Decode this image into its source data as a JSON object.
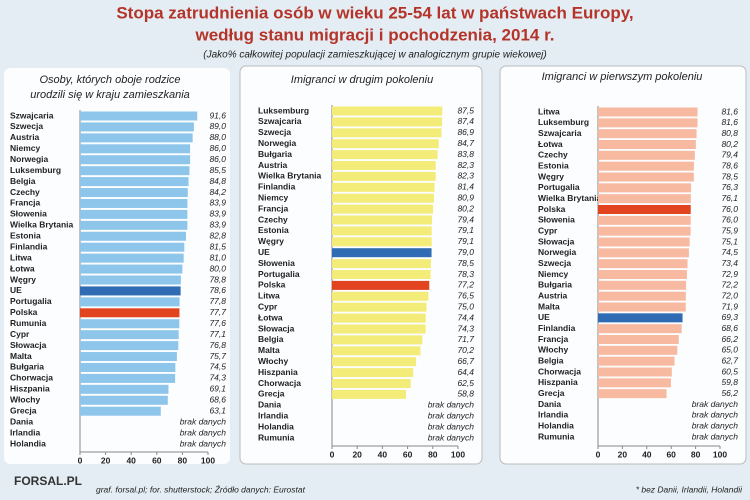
{
  "title": [
    "Stopa zatrudnienia osób w wieku 25-54 lat w państwach Europy,",
    "według stanu migracji i pochodzenia, 2014 r."
  ],
  "subtitle": "(Jako% całkowitej populacji zamieszkującej w analogicznym grupie wiekowej)",
  "logo": "FORSAL.PL",
  "source": "graf. forsal.pl; for. shutterstock; Źródło danych: Eurostat",
  "note": "* bez Danii, Irlandii, Holandii",
  "chart_data": [
    {
      "type": "bar",
      "orientation": "horizontal",
      "title": [
        "Osoby, których oboje rodzice",
        "urodzili się w kraju zamieszkania"
      ],
      "color": "#8dc6ea",
      "highlight_colors": {
        "UE": "#2f6cb3",
        "Polska": "#e2441f"
      },
      "xlim": [
        0,
        100
      ],
      "xticks": [
        0,
        20,
        40,
        60,
        80,
        100
      ],
      "categories": [
        "Szwajcaria",
        "Szwecja",
        "Austria",
        "Niemcy",
        "Norwegia",
        "Luksemburg",
        "Belgia",
        "Czechy",
        "Francja",
        "Słowenia",
        "Wielka Brytania",
        "Estonia",
        "Finlandia",
        "Litwa",
        "Łotwa",
        "Węgry",
        "UE",
        "Portugalia",
        "Polska",
        "Rumunia",
        "Cypr",
        "Słowacja",
        "Malta",
        "Bułgaria",
        "Chorwacja",
        "Hiszpania",
        "Włochy",
        "Grecja",
        "Dania",
        "Irlandia",
        "Holandia"
      ],
      "values": [
        91.6,
        89.0,
        88.0,
        86.0,
        86.0,
        85.5,
        84.8,
        84.2,
        83.9,
        83.9,
        83.9,
        82.8,
        81.5,
        81.0,
        80.0,
        78.8,
        78.6,
        77.8,
        77.7,
        77.6,
        77.1,
        76.8,
        75.7,
        74.5,
        74.3,
        69.1,
        68.6,
        63.1,
        null,
        null,
        null
      ],
      "value_labels": [
        "91,6",
        "89,0",
        "88,0",
        "86,0",
        "86,0",
        "85,5",
        "84,8",
        "84,2",
        "83,9",
        "83,9",
        "83,9",
        "82,8",
        "81,5",
        "81,0",
        "80,0",
        "78,8",
        "78,6",
        "77,8",
        "77,7",
        "77,6",
        "77,1",
        "76,8",
        "75,7",
        "74,5",
        "74,3",
        "69,1",
        "68,6",
        "63,1",
        "brak danych",
        "brak danych",
        "brak danych"
      ]
    },
    {
      "type": "bar",
      "orientation": "horizontal",
      "title": [
        "Imigranci w drugim pokoleniu"
      ],
      "color": "#f3ec78",
      "highlight_colors": {
        "UE": "#2f6cb3",
        "Polska": "#e2441f"
      },
      "xlim": [
        0,
        100
      ],
      "xticks": [
        0,
        20,
        40,
        60,
        80,
        100
      ],
      "categories": [
        "Luksemburg",
        "Szwajcaria",
        "Szwecja",
        "Norwegia",
        "Bułgaria",
        "Austria",
        "Wielka Brytania",
        "Finlandia",
        "Niemcy",
        "Francja",
        "Czechy",
        "Estonia",
        "Węgry",
        "UE",
        "Słowenia",
        "Portugalia",
        "Polska",
        "Litwa",
        "Cypr",
        "Łotwa",
        "Słowacja",
        "Belgia",
        "Malta",
        "Włochy",
        "Hiszpania",
        "Chorwacja",
        "Grecja",
        "Dania",
        "Irlandia",
        "Holandia",
        "Rumunia"
      ],
      "values": [
        87.5,
        87.4,
        86.9,
        84.7,
        83.8,
        82.3,
        82.3,
        81.4,
        80.9,
        80.2,
        79.4,
        79.1,
        79.1,
        79.0,
        78.5,
        78.3,
        77.2,
        76.5,
        75.0,
        74.4,
        74.3,
        71.7,
        70.2,
        66.7,
        64.4,
        62.5,
        58.8,
        null,
        null,
        null,
        null
      ],
      "value_labels": [
        "87,5",
        "87,4",
        "86,9",
        "84,7",
        "83,8",
        "82,3",
        "82,3",
        "81,4",
        "80,9",
        "80,2",
        "79,4",
        "79,1",
        "79,1",
        "79,0",
        "78,5",
        "78,3",
        "77,2",
        "76,5",
        "75,0",
        "74,4",
        "74,3",
        "71,7",
        "70,2",
        "66,7",
        "64,4",
        "62,5",
        "58,8",
        "brak danych",
        "brak danych",
        "brak danych",
        "brak danych"
      ]
    },
    {
      "type": "bar",
      "orientation": "horizontal",
      "title": [
        "Imigranci w pierwszym pokoleniu"
      ],
      "color": "#f8b9a1",
      "highlight_colors": {
        "UE": "#2f6cb3",
        "Polska": "#e2441f"
      },
      "xlim": [
        0,
        100
      ],
      "xticks": [
        0,
        20,
        40,
        60,
        80,
        100
      ],
      "categories": [
        "Litwa",
        "Luksemburg",
        "Szwajcaria",
        "Łotwa",
        "Czechy",
        "Estonia",
        "Węgry",
        "Portugalia",
        "Wielka Brytania",
        "Polska",
        "Słowenia",
        "Cypr",
        "Słowacja",
        "Norwegia",
        "Szwecja",
        "Niemcy",
        "Bułgaria",
        "Austria",
        "Malta",
        "UE",
        "Finlandia",
        "Francja",
        "Włochy",
        "Belgia",
        "Chorwacja",
        "Hiszpania",
        "Grecja",
        "Dania",
        "Irlandia",
        "Holandia",
        "Rumunia"
      ],
      "values": [
        81.6,
        81.6,
        80.8,
        80.2,
        79.4,
        78.6,
        78.5,
        76.3,
        76.1,
        76.0,
        76.0,
        75.9,
        75.1,
        74.5,
        73.4,
        72.9,
        72.2,
        72.0,
        71.9,
        69.3,
        68.6,
        66.2,
        65.0,
        62.7,
        60.5,
        59.8,
        56.2,
        null,
        null,
        null,
        null
      ],
      "value_labels": [
        "81,6",
        "81,6",
        "80,8",
        "80,2",
        "79,4",
        "78,6",
        "78,5",
        "76,3",
        "76,1",
        "76,0",
        "76,0",
        "75,9",
        "75,1",
        "74,5",
        "73,4",
        "72,9",
        "72,2",
        "72,0",
        "71,9",
        "69,3",
        "68,6",
        "66,2",
        "65,0",
        "62,7",
        "60,5",
        "59,8",
        "56,2",
        "brak danych",
        "brak danych",
        "brak danych",
        "brak danych"
      ]
    }
  ]
}
